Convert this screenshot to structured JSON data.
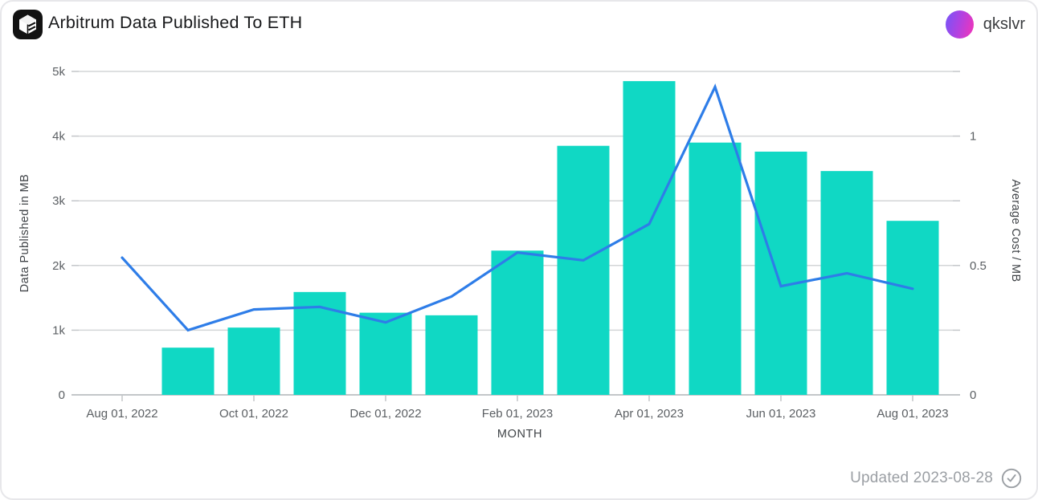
{
  "header": {
    "title": "Arbitrum Data Published To ETH",
    "logo": "flipside-cube-logo",
    "user": {
      "name": "qkslvr",
      "avatar_gradient": [
        "#7e52f5",
        "#ee35bb"
      ]
    }
  },
  "footer": {
    "updated_label": "Updated 2023-08-28",
    "status_icon": "check-circle-icon"
  },
  "colors": {
    "bar": "#10d8c4",
    "line": "#2e7de8",
    "grid": "#d3d5d7",
    "axis_line": "#c3c6c9",
    "tick_text": "#5b5f63",
    "axis_title_text": "#3f4347"
  },
  "chart_data": {
    "type": "bar",
    "title": "Arbitrum Data Published To ETH",
    "x": [
      "Aug 2022",
      "Sep 2022",
      "Oct 2022",
      "Nov 2022",
      "Dec 2022",
      "Jan 2023",
      "Feb 2023",
      "Mar 2023",
      "Apr 2023",
      "May 2023",
      "Jun 2023",
      "Jul 2023",
      "Aug 2023"
    ],
    "x_ticks": [
      {
        "index": 0,
        "label": "Aug 01, 2022"
      },
      {
        "index": 2,
        "label": "Oct 01, 2022"
      },
      {
        "index": 4,
        "label": "Dec 01, 2022"
      },
      {
        "index": 6,
        "label": "Feb 01, 2023"
      },
      {
        "index": 8,
        "label": "Apr 01, 2023"
      },
      {
        "index": 10,
        "label": "Jun 01, 2023"
      },
      {
        "index": 12,
        "label": "Aug 01, 2023"
      }
    ],
    "xlabel": "MONTH",
    "series": [
      {
        "name": "Data Published in MB",
        "type": "bar",
        "axis": "left",
        "color": "#10d8c4",
        "values": [
          null,
          730,
          1040,
          1590,
          1270,
          1230,
          2230,
          3850,
          4850,
          3900,
          3760,
          3460,
          2690
        ]
      },
      {
        "name": "Average Cost / MB",
        "type": "line",
        "axis": "right",
        "color": "#2e7de8",
        "values": [
          0.53,
          0.25,
          0.33,
          0.34,
          0.28,
          0.38,
          0.55,
          0.52,
          0.66,
          1.19,
          0.42,
          0.47,
          0.41
        ]
      }
    ],
    "left_axis": {
      "label": "Data Published in MB",
      "tick_labels": [
        "0",
        "1k",
        "2k",
        "3k",
        "4k",
        "5k"
      ],
      "tick_values": [
        0,
        1000,
        2000,
        3000,
        4000,
        5000
      ],
      "range": [
        0,
        5000
      ]
    },
    "right_axis": {
      "label": "Average Cost / MB",
      "tick_labels": [
        "0",
        "0.5",
        "1"
      ],
      "tick_values": [
        0,
        0.5,
        1
      ],
      "range": [
        0,
        1.25
      ]
    },
    "grid": true,
    "legend": false
  }
}
